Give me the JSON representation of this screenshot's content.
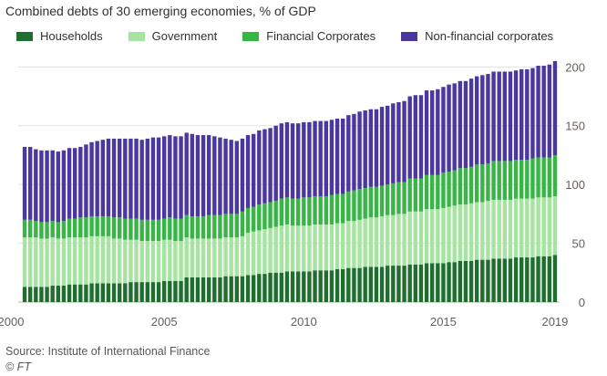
{
  "chart_data": {
    "type": "bar",
    "stacked": true,
    "title": "Combined debts of 30 emerging economies, % of GDP",
    "xlabel": "",
    "ylabel": "",
    "ylim": [
      0,
      215
    ],
    "yticks": [
      0,
      50,
      100,
      150,
      200
    ],
    "xticks": [
      {
        "label": "2000",
        "index": 0
      },
      {
        "label": "2005",
        "index": 20
      },
      {
        "label": "2010",
        "index": 40
      },
      {
        "label": "2015",
        "index": 60
      },
      {
        "label": "2019",
        "index": 76
      }
    ],
    "grid": true,
    "legend_position": "top",
    "series": [
      {
        "name": "Households",
        "color": "#1e6f2e",
        "values": [
          13,
          13,
          13,
          13,
          13,
          14,
          14,
          14,
          15,
          15,
          15,
          15,
          16,
          16,
          16,
          16,
          16,
          16,
          16,
          17,
          17,
          17,
          17,
          17,
          17,
          18,
          18,
          18,
          18,
          21,
          21,
          21,
          21,
          21,
          21,
          21,
          22,
          22,
          22,
          22,
          23,
          23,
          24,
          24,
          25,
          25,
          25,
          26,
          26,
          26,
          26,
          26,
          27,
          27,
          27,
          27,
          28,
          28,
          29,
          29,
          29,
          30,
          30,
          30,
          30,
          31,
          31,
          31,
          31,
          32,
          32,
          32,
          33,
          33,
          33,
          33,
          34,
          34,
          35,
          35,
          35,
          36,
          36,
          36,
          37,
          37,
          37,
          37,
          38,
          38,
          38,
          38,
          39,
          39,
          39,
          40
        ]
      },
      {
        "name": "Government",
        "color": "#a6e4a1",
        "values": [
          42,
          42,
          42,
          41,
          41,
          41,
          40,
          40,
          40,
          40,
          40,
          40,
          40,
          40,
          40,
          40,
          38,
          38,
          37,
          36,
          36,
          35,
          35,
          35,
          35,
          35,
          35,
          34,
          34,
          34,
          33,
          33,
          33,
          33,
          33,
          33,
          33,
          33,
          33,
          34,
          36,
          37,
          37,
          38,
          38,
          39,
          40,
          40,
          39,
          39,
          39,
          39,
          39,
          39,
          39,
          39,
          39,
          39,
          40,
          40,
          41,
          41,
          42,
          42,
          43,
          43,
          43,
          44,
          44,
          45,
          45,
          45,
          46,
          46,
          46,
          47,
          47,
          48,
          48,
          48,
          49,
          49,
          49,
          50,
          50,
          50,
          50,
          50,
          50,
          50,
          50,
          50,
          50,
          50,
          50,
          50
        ]
      },
      {
        "name": "Financial Corporates",
        "color": "#37b545",
        "values": [
          15,
          15,
          14,
          14,
          14,
          14,
          14,
          15,
          16,
          16,
          17,
          17,
          17,
          17,
          17,
          17,
          18,
          18,
          18,
          18,
          18,
          18,
          18,
          18,
          18,
          18,
          19,
          19,
          19,
          19,
          19,
          19,
          19,
          20,
          20,
          20,
          20,
          20,
          20,
          21,
          21,
          21,
          22,
          22,
          22,
          22,
          23,
          23,
          23,
          23,
          24,
          24,
          24,
          24,
          24,
          25,
          25,
          25,
          25,
          26,
          26,
          26,
          26,
          26,
          26,
          26,
          27,
          27,
          27,
          28,
          28,
          28,
          29,
          29,
          29,
          30,
          30,
          30,
          31,
          31,
          31,
          32,
          32,
          32,
          33,
          33,
          33,
          33,
          33,
          33,
          33,
          34,
          34,
          34,
          34,
          35
        ]
      },
      {
        "name": "Non-financial corporates",
        "color": "#4a37a0",
        "values": [
          62,
          62,
          61,
          61,
          61,
          60,
          60,
          60,
          60,
          60,
          60,
          62,
          63,
          64,
          65,
          66,
          67,
          67,
          68,
          68,
          68,
          68,
          69,
          70,
          70,
          70,
          70,
          70,
          70,
          70,
          70,
          69,
          69,
          68,
          67,
          66,
          64,
          63,
          62,
          62,
          62,
          62,
          63,
          63,
          63,
          64,
          64,
          64,
          64,
          64,
          64,
          64,
          64,
          64,
          64,
          64,
          64,
          64,
          65,
          65,
          66,
          66,
          66,
          66,
          67,
          67,
          68,
          68,
          69,
          70,
          71,
          71,
          72,
          72,
          73,
          73,
          74,
          74,
          74,
          74,
          75,
          75,
          76,
          76,
          76,
          76,
          76,
          76,
          76,
          77,
          77,
          77,
          78,
          78,
          79,
          80
        ]
      }
    ]
  },
  "source": "Source: Institute of International Finance",
  "credit": "© FT"
}
